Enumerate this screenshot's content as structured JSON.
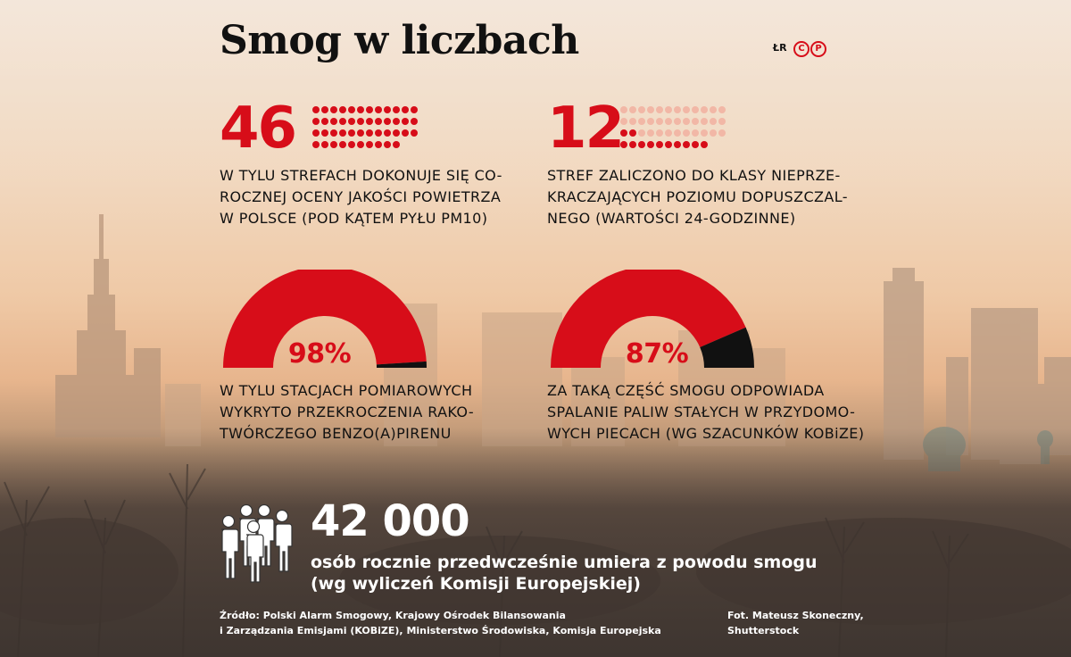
{
  "header": {
    "title": "Smog w liczbach",
    "author_initials": "ŁR",
    "logo_letters": [
      "C",
      "P"
    ]
  },
  "stat_46": {
    "number": "46",
    "dots_total": 46,
    "dots_highlighted": 46,
    "caption_lines": [
      "W TYLU STREFACH DOKONUJE SIĘ CO-",
      "ROCZNEJ OCENY JAKOŚCI POWIETRZA",
      "W POLSCE (POD KĄTEM PYŁU PM10)"
    ]
  },
  "stat_12": {
    "number": "12",
    "dots_total": 46,
    "dots_highlighted": 12,
    "caption_lines": [
      "STREF ZALICZONO DO KLASY NIEPRZE-",
      "KRACZAJĄCYCH POZIOMU DOPUSZCZAL-",
      "NEGO (WARTOŚCI 24-GODZINNE)"
    ]
  },
  "stat_98": {
    "percent_label": "98%",
    "percent_value": 98,
    "caption_lines": [
      "W TYLU STACJACH POMIAROWYCH",
      "WYKRYTO PRZEKROCZENIA RAKO-",
      "TWÓRCZEGO BENZO(A)PIRENU"
    ]
  },
  "stat_87": {
    "percent_label": "87%",
    "percent_value": 87,
    "caption_lines": [
      "ZA TAKĄ CZĘŚĆ SMOGU ODPOWIADA",
      "SPALANIE PALIW STAŁYCH W PRZYDOMO-",
      "WYCH PIECACH (WG SZACUNKÓW KOBiZE)"
    ]
  },
  "deaths": {
    "number": "42 000",
    "line1": "osób rocznie przedwcześnie umiera z powodu smogu",
    "line2": "(wg wyliczeń Komisji Europejskiej)"
  },
  "footer": {
    "source_line1": "Źródło: Polski Alarm Smogowy, Krajowy Ośrodek Bilansowania",
    "source_line2": "i Zarządzania Emisjami (KOBiZE), Ministerstwo Środowiska, Komisja Europejska",
    "photo_line1": "Fot. Mateusz Skoneczny,",
    "photo_line2": "Shutterstock"
  },
  "colors": {
    "accent_red": "#d70d19",
    "faded_red": "#f2b7a6",
    "black": "#111111"
  },
  "icons": {
    "people": "people-group-icon",
    "logo": "cp-logo-icon"
  }
}
